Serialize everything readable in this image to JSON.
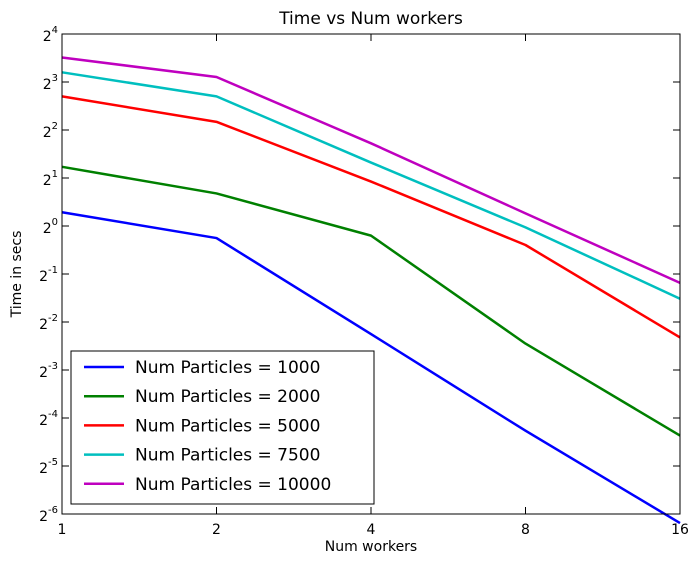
{
  "chart_data": {
    "type": "line",
    "title": "Time vs Num workers",
    "xlabel": "Num workers",
    "ylabel": "Time in secs",
    "x_scale": "log2",
    "y_scale": "log2",
    "x": [
      1,
      2,
      4,
      8,
      16
    ],
    "x_tick_labels": [
      "1",
      "2",
      "4",
      "8",
      "16"
    ],
    "y_ticks": [
      {
        "base": "2",
        "exp": "-6"
      },
      {
        "base": "2",
        "exp": "-5"
      },
      {
        "base": "2",
        "exp": "-4"
      },
      {
        "base": "2",
        "exp": "-3"
      },
      {
        "base": "2",
        "exp": "-2"
      },
      {
        "base": "2",
        "exp": "-1"
      },
      {
        "base": "2",
        "exp": "0"
      },
      {
        "base": "2",
        "exp": "1"
      },
      {
        "base": "2",
        "exp": "2"
      },
      {
        "base": "2",
        "exp": "3"
      },
      {
        "base": "2",
        "exp": "4"
      }
    ],
    "xlim": [
      1,
      16
    ],
    "ylim": [
      0.015625,
      16
    ],
    "grid": false,
    "legend_position": "lower-left",
    "series": [
      {
        "name": "Num Particles = 1000",
        "color": "#0000ff",
        "values": [
          1.22,
          0.84,
          0.21,
          0.052,
          0.0137
        ]
      },
      {
        "name": "Num Particles = 2000",
        "color": "#008000",
        "values": [
          2.35,
          1.6,
          0.87,
          0.183,
          0.0485
        ]
      },
      {
        "name": "Num Particles = 5000",
        "color": "#ff0000",
        "values": [
          6.5,
          4.5,
          1.9,
          0.76,
          0.2
        ]
      },
      {
        "name": "Num Particles = 7500",
        "color": "#00bfbf",
        "values": [
          9.2,
          6.5,
          2.5,
          0.98,
          0.35
        ]
      },
      {
        "name": "Num Particles = 10000",
        "color": "#bf00bf",
        "values": [
          11.4,
          8.6,
          3.3,
          1.2,
          0.44
        ]
      }
    ]
  }
}
